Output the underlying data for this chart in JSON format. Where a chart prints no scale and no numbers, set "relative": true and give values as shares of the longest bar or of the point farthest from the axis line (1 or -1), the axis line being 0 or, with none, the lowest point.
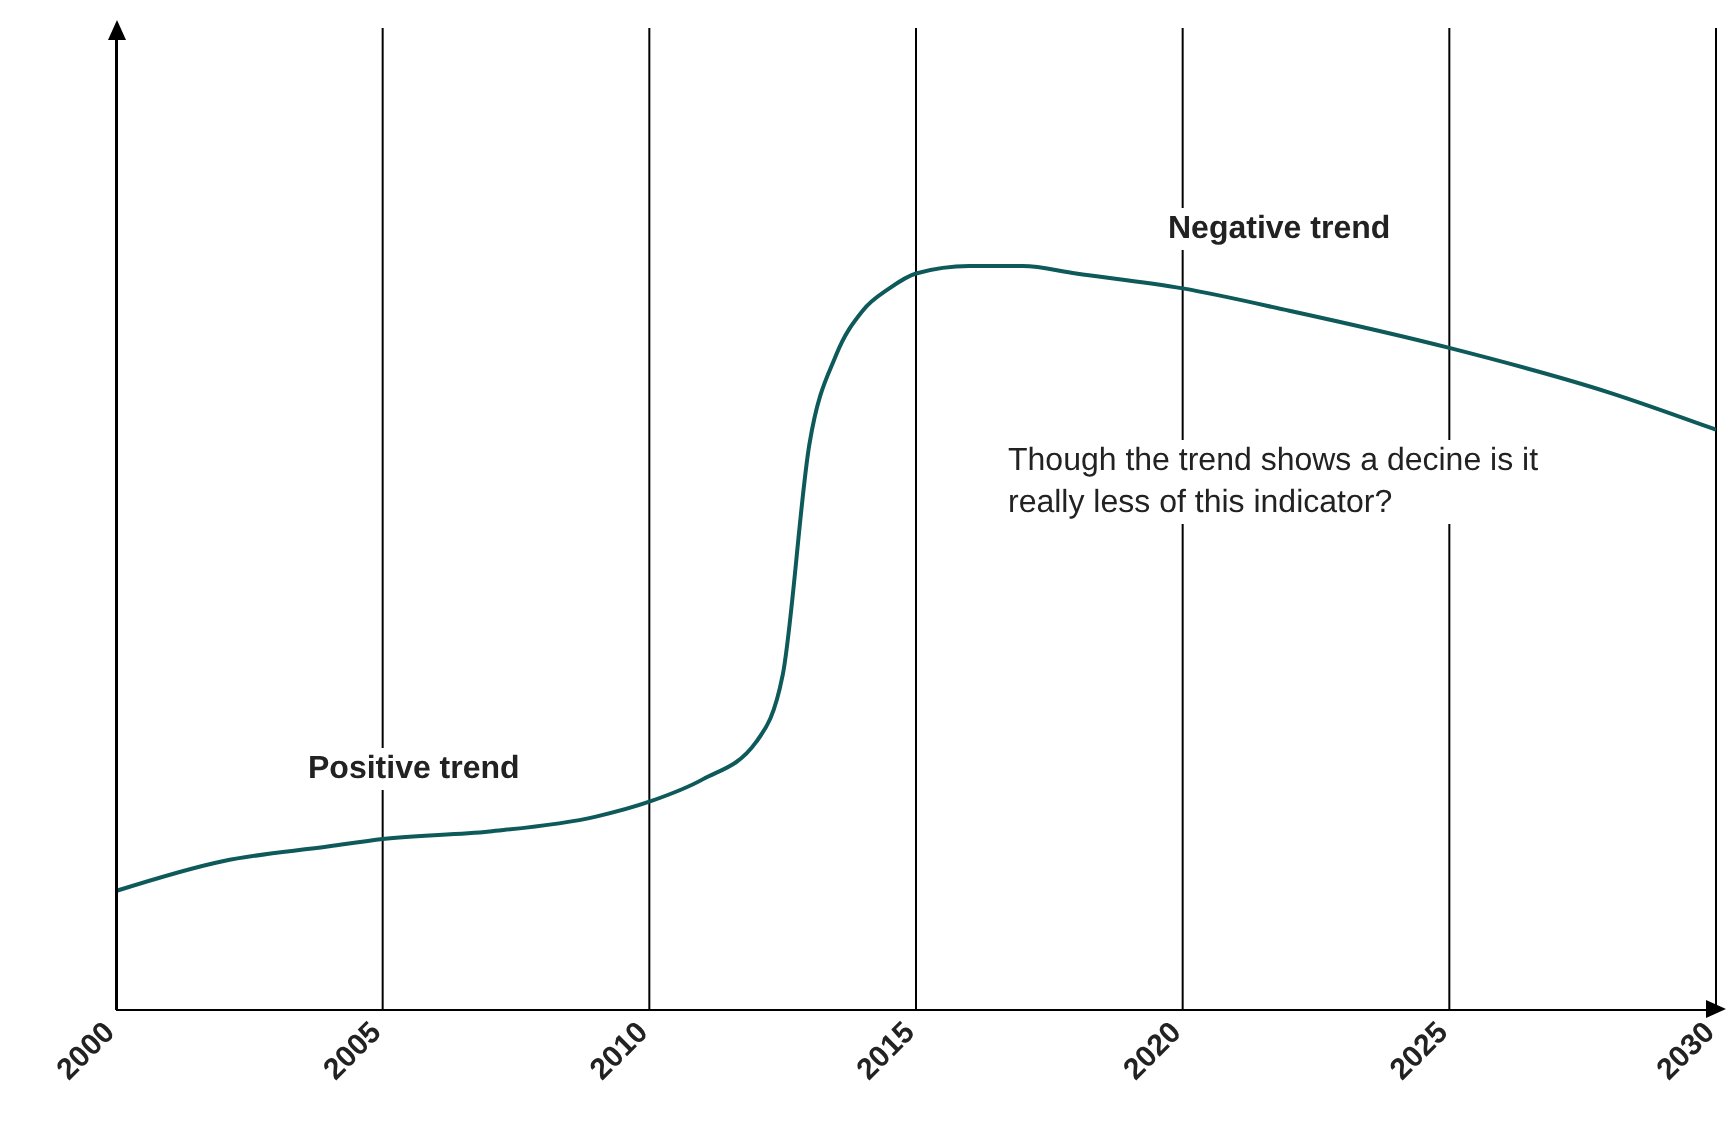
{
  "chart_data": {
    "type": "line",
    "relative": true,
    "color": "#0e5a5a",
    "x": [
      2000,
      2002,
      2004,
      2005,
      2007,
      2009,
      2010,
      2011,
      2012,
      2012.5,
      2013,
      2013.5,
      2014,
      2014.5,
      2015,
      2016,
      2017,
      2018,
      2020,
      2022,
      2025,
      2028,
      2030
    ],
    "values": [
      0.16,
      0.2,
      0.22,
      0.23,
      0.24,
      0.26,
      0.28,
      0.31,
      0.36,
      0.45,
      0.76,
      0.88,
      0.94,
      0.97,
      0.99,
      1,
      1,
      0.99,
      0.97,
      0.94,
      0.89,
      0.83,
      0.78
    ],
    "xlim": [
      2000,
      2030
    ],
    "xticks": [
      2000,
      2005,
      2010,
      2015,
      2020,
      2025,
      2030
    ],
    "grid": "x",
    "annotations": [
      "Positive trend",
      "Negative trend",
      "Though the trend shows a decine is it really less of this indicator?"
    ]
  }
}
